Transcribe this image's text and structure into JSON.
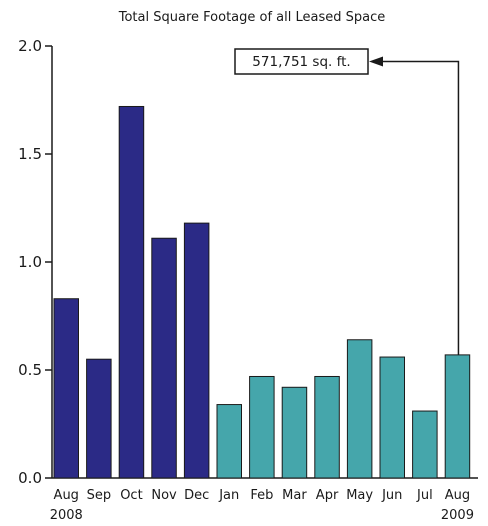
{
  "chart_data": {
    "type": "bar",
    "title": "Total Square Footage of all Leased Space",
    "xlabel": "",
    "ylabel": "",
    "ylim": [
      0,
      2.0
    ],
    "yticks": [
      "0.0",
      "0.5",
      "1.0",
      "1.5",
      "2.0"
    ],
    "ytick_values": [
      0,
      0.5,
      1.0,
      1.5,
      2.0
    ],
    "categories": [
      "Aug",
      "Sep",
      "Oct",
      "Nov",
      "Dec",
      "Jan",
      "Feb",
      "Mar",
      "Apr",
      "May",
      "Jun",
      "Jul",
      "Aug"
    ],
    "values": [
      0.83,
      0.55,
      1.72,
      1.11,
      1.18,
      0.34,
      0.47,
      0.42,
      0.47,
      0.64,
      0.56,
      0.31,
      0.57
    ],
    "bar_colors": [
      "#2b2a86",
      "#2b2a86",
      "#2b2a86",
      "#2b2a86",
      "#2b2a86",
      "#45a6ab",
      "#45a6ab",
      "#45a6ab",
      "#45a6ab",
      "#45a6ab",
      "#45a6ab",
      "#45a6ab",
      "#45a6ab"
    ],
    "year_labels": {
      "start": "2008",
      "end": "2009"
    },
    "annotation": {
      "text": "571,751 sq. ft.",
      "target_index": 12
    },
    "grid": false,
    "legend": "none"
  }
}
